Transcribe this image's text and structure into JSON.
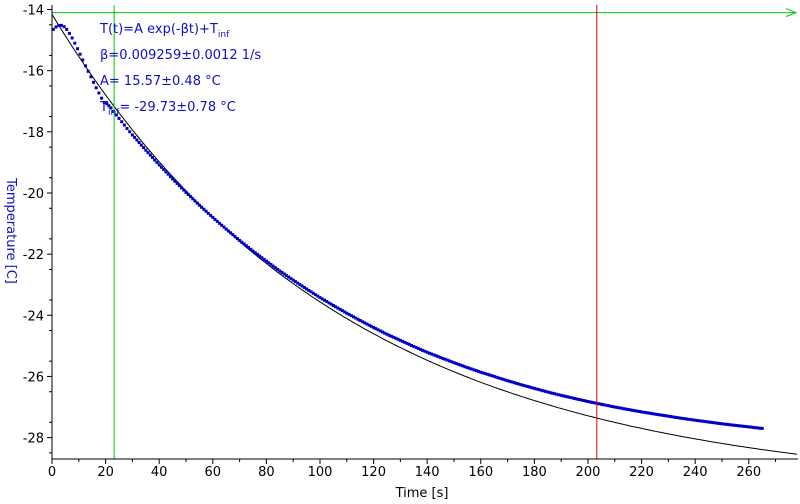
{
  "colors": {
    "data_points": "#0000c8",
    "fit_curve": "#000000",
    "annotation_text": "#1010c8",
    "cursor_left": "#00c800",
    "cursor_right": "#e00000",
    "ylabel": "#1010c8",
    "xlabel": "#000000"
  },
  "annotation": {
    "formula": {
      "main": "T(t)=A exp(-βt)+T",
      "sub": "inf"
    },
    "beta": "β=0.009259±0.0012 1/s",
    "amplitude": "A= 15.57±0.48 °C",
    "t_inf": {
      "main": "T",
      "sub": "inf",
      "rest": "= -29.73±0.78 °C"
    }
  },
  "chart_data": {
    "type": "scatter",
    "title": "",
    "xlabel": "Time [s]",
    "ylabel": "Temperature [C]",
    "xlim": [
      0,
      278
    ],
    "ylim": [
      -28.7,
      -13.95
    ],
    "x_ticks": [
      0,
      20,
      40,
      60,
      80,
      100,
      120,
      140,
      160,
      180,
      200,
      220,
      240,
      260
    ],
    "y_ticks": [
      -14,
      -16,
      -18,
      -20,
      -22,
      -24,
      -26,
      -28
    ],
    "grid": false,
    "fit": {
      "model": "T(t)=A exp(-βt)+T_inf",
      "A": 15.57,
      "beta": 0.009259,
      "T_inf": -29.73,
      "x_range": [
        0,
        278
      ]
    },
    "cursors": [
      {
        "name": "left",
        "x": 23.2,
        "color": "#00c800",
        "horizontal_arrow_y": -14.1
      },
      {
        "name": "right",
        "x": 203.3,
        "color": "#e00000"
      }
    ],
    "series": [
      {
        "marker": "square",
        "x": [
          0.5,
          1.5,
          2.5,
          3.5,
          4.5,
          5.5,
          6.5,
          7.5,
          8.5,
          9.5,
          10.5,
          11.5,
          12.5,
          13.5,
          14.5,
          15.5,
          16.5,
          17.5,
          18.5,
          19.5,
          20.5,
          22,
          24,
          26,
          28,
          30,
          35,
          40,
          45,
          50,
          55,
          60,
          65,
          70,
          75,
          80,
          85,
          90,
          95,
          100,
          105,
          110,
          115,
          120,
          125,
          130,
          135,
          140,
          145,
          150,
          155,
          160,
          165,
          170,
          175,
          180,
          185,
          190,
          195,
          200,
          205,
          210,
          215,
          220,
          225,
          230,
          235,
          240,
          245,
          250,
          255,
          260,
          265
        ],
        "y": [
          -14.65,
          -14.57,
          -14.52,
          -14.52,
          -14.56,
          -14.65,
          -14.78,
          -14.93,
          -15.1,
          -15.28,
          -15.46,
          -15.65,
          -15.84,
          -16.02,
          -16.2,
          -16.38,
          -16.56,
          -16.73,
          -16.9,
          -17.04,
          -17.08,
          -17.22,
          -17.45,
          -17.67,
          -17.89,
          -18.1,
          -18.6,
          -19.08,
          -19.54,
          -19.98,
          -20.4,
          -20.8,
          -21.18,
          -21.55,
          -21.9,
          -22.23,
          -22.55,
          -22.85,
          -23.14,
          -23.42,
          -23.68,
          -23.93,
          -24.17,
          -24.4,
          -24.62,
          -24.82,
          -25.02,
          -25.21,
          -25.38,
          -25.55,
          -25.71,
          -25.86,
          -26.0,
          -26.14,
          -26.27,
          -26.39,
          -26.51,
          -26.62,
          -26.72,
          -26.82,
          -26.91,
          -27.0,
          -27.08,
          -27.16,
          -27.23,
          -27.3,
          -27.37,
          -27.43,
          -27.49,
          -27.55,
          -27.6,
          -27.65,
          -27.7
        ]
      }
    ]
  }
}
